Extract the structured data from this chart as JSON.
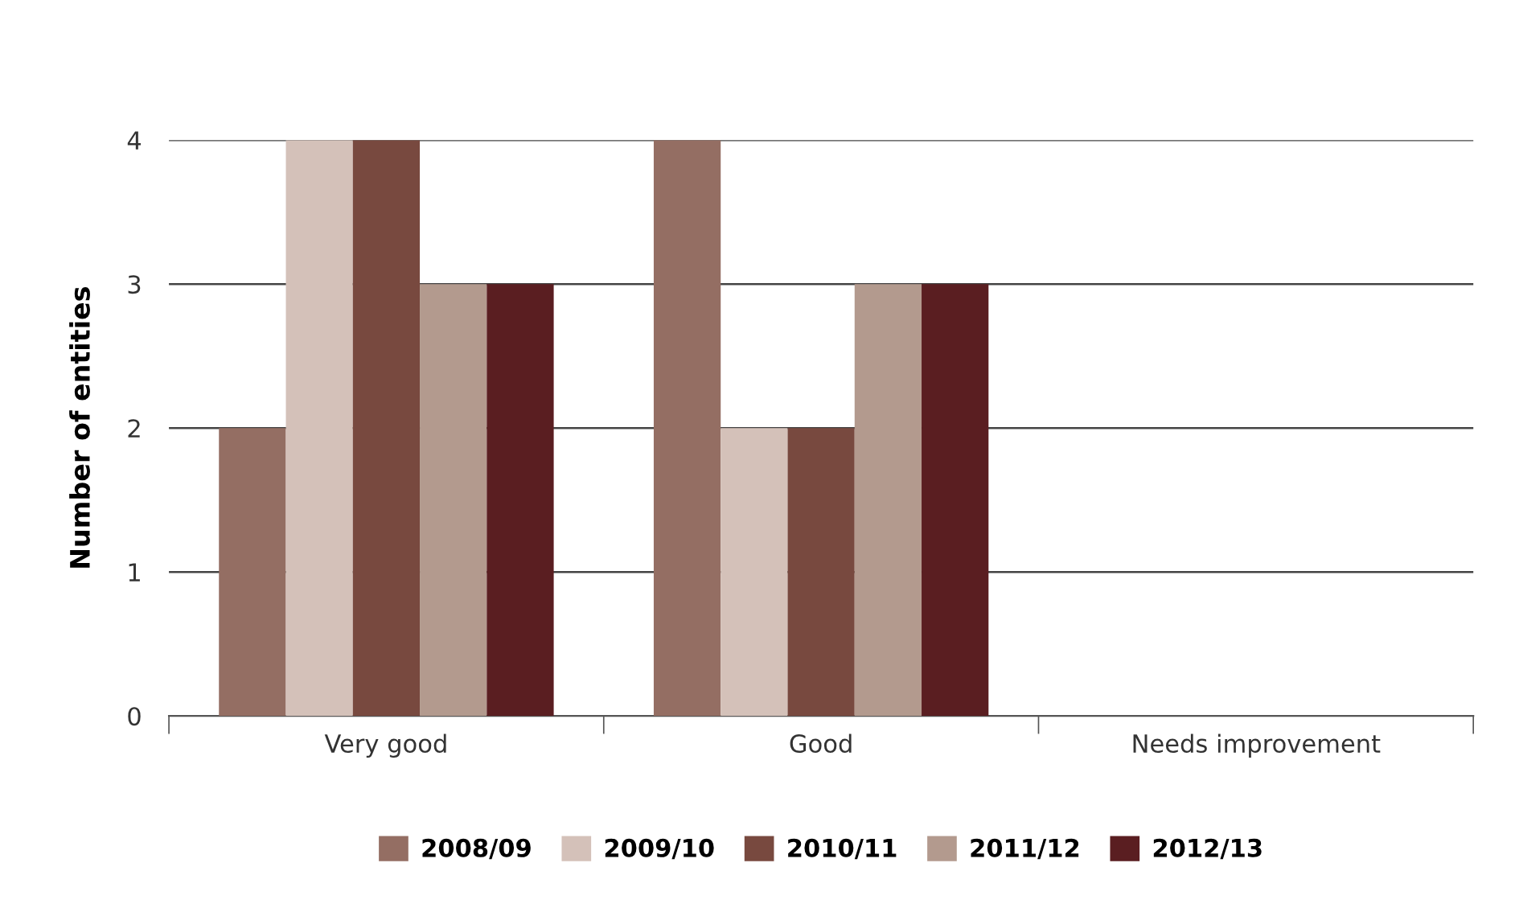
{
  "chart_data": {
    "type": "bar",
    "ylabel": "Number of entities",
    "categories": [
      "Very good",
      "Good",
      "Needs improvement"
    ],
    "series": [
      {
        "name": "2008/09",
        "color": "#946e63",
        "values": [
          2,
          4,
          0
        ]
      },
      {
        "name": "2009/10",
        "color": "#d4c1b9",
        "values": [
          4,
          2,
          0
        ]
      },
      {
        "name": "2010/11",
        "color": "#78493f",
        "values": [
          4,
          2,
          0
        ]
      },
      {
        "name": "2011/12",
        "color": "#b39a8e",
        "values": [
          3,
          3,
          0
        ]
      },
      {
        "name": "2012/13",
        "color": "#5a1e21",
        "values": [
          3,
          3,
          0
        ]
      }
    ],
    "ylim": [
      0,
      4
    ],
    "yticks": [
      0,
      1,
      2,
      3,
      4
    ],
    "grid": "y",
    "legend": "bottom"
  }
}
